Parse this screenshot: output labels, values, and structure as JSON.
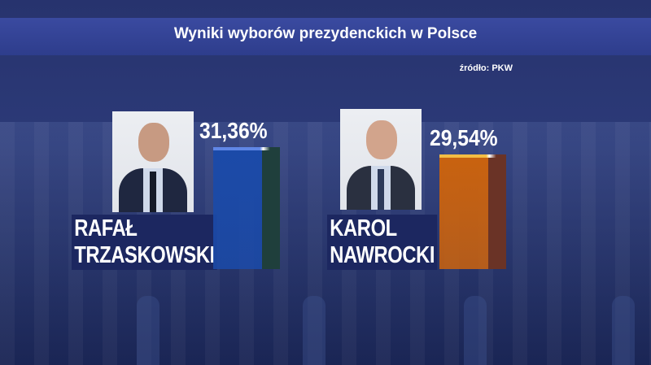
{
  "header": {
    "title": "Wyniki wyborów prezydenckich w Polsce",
    "source": "źródło: PKW"
  },
  "chart_data": {
    "type": "bar",
    "title": "Wyniki wyborów prezydenckich w Polsce",
    "categories": [
      "RAFAŁ TRZASKOWSKI",
      "KAROL NAWROCKI"
    ],
    "values": [
      31.36,
      29.54
    ],
    "value_labels": [
      "31,36%",
      "29,54%"
    ],
    "colors": [
      "#1b4aa8",
      "#c9620f"
    ],
    "candidates": [
      {
        "first": "RAFAŁ",
        "last": "TRZASKOWSKI",
        "label": "31,36%",
        "value": 31.36,
        "color": "#1b4aa8",
        "side_color": "#1f3f3c",
        "cap_color": "#5f86e6"
      },
      {
        "first": "KAROL",
        "last": "NAWROCKI",
        "label": "29,54%",
        "value": 29.54,
        "color": "#c9620f",
        "side_color": "#6a3326",
        "cap_color": "#f3bd44"
      }
    ]
  }
}
